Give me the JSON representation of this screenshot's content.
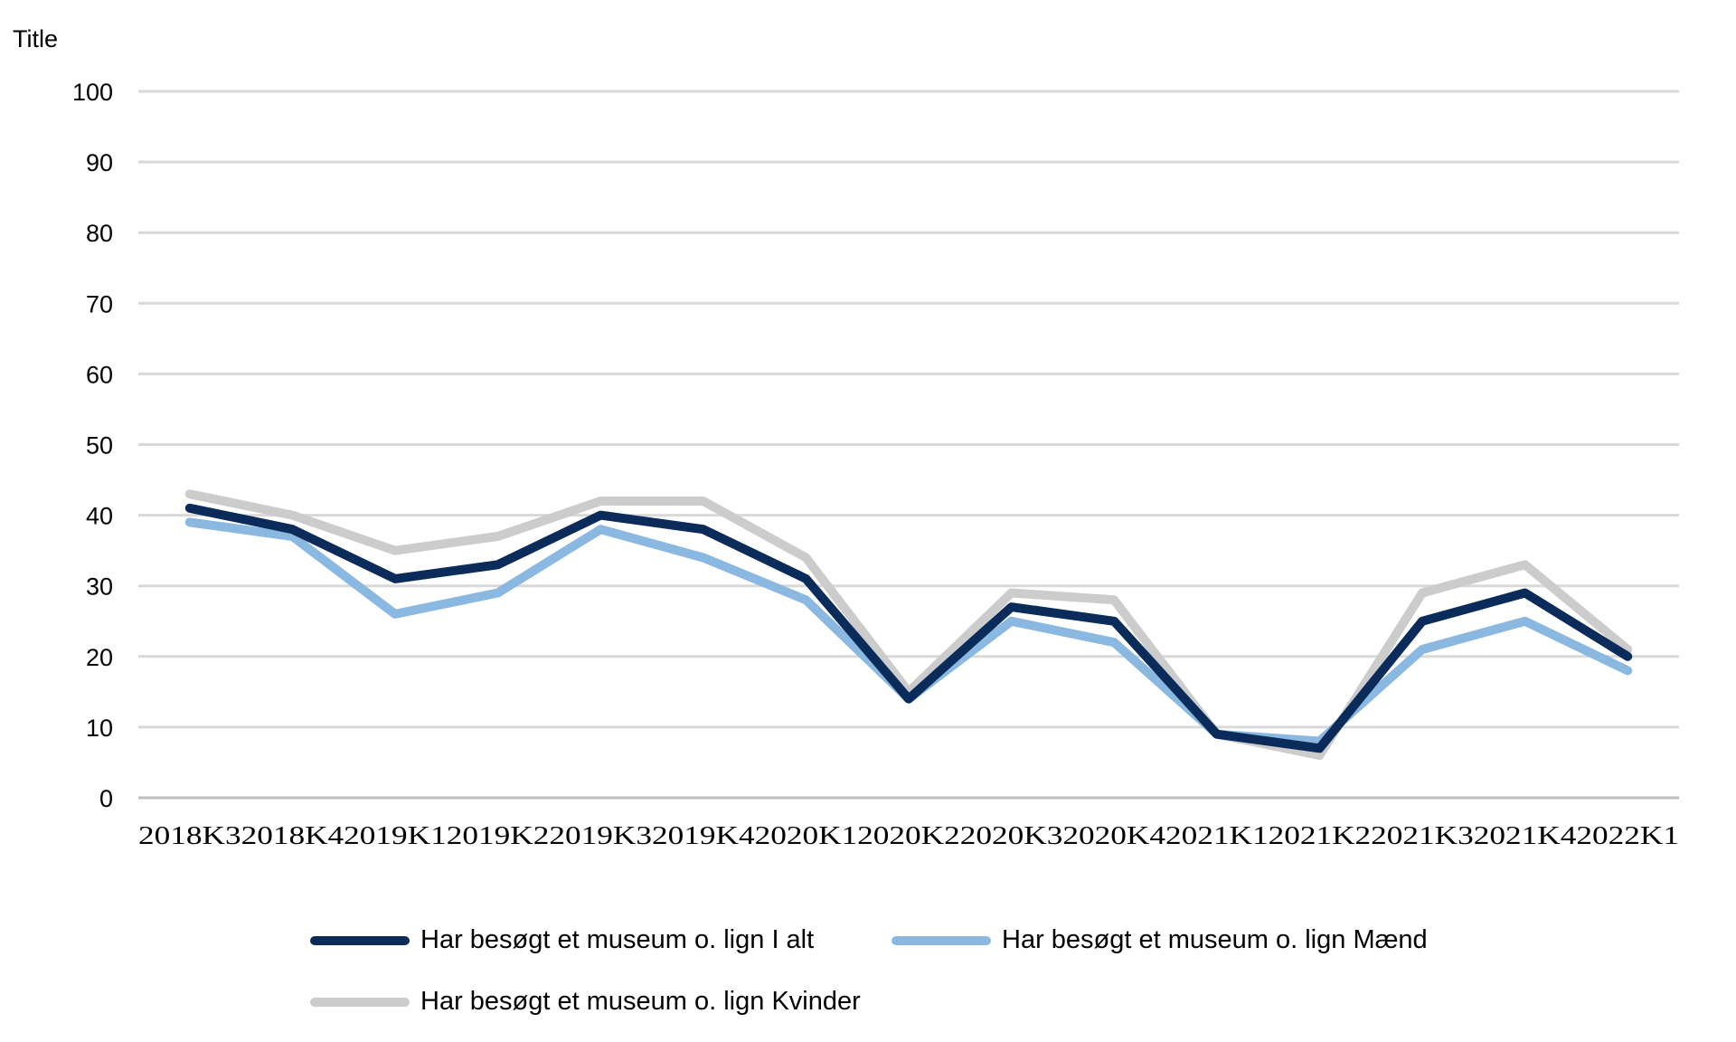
{
  "chart_data": {
    "type": "line",
    "title": "Title",
    "xlabel": "",
    "ylabel": "",
    "ylim": [
      0,
      100
    ],
    "yticks": [
      0,
      10,
      20,
      30,
      40,
      50,
      60,
      70,
      80,
      90,
      100
    ],
    "grid": true,
    "legend_position": "bottom",
    "categories": [
      "2018K3",
      "2018K4",
      "2019K1",
      "2019K2",
      "2019K3",
      "2019K4",
      "2020K1",
      "2020K2",
      "2020K3",
      "2020K4",
      "2021K1",
      "2021K2",
      "2021K3",
      "2021K4",
      "2022K1"
    ],
    "series": [
      {
        "name": "Har besøgt et museum o. lign I alt",
        "color": "#0b2c5a",
        "values": [
          41,
          38,
          31,
          33,
          40,
          38,
          31,
          14,
          27,
          25,
          9,
          7,
          25,
          29,
          20
        ]
      },
      {
        "name": "Har besøgt et museum o. lign Mænd",
        "color": "#8ab8e0",
        "values": [
          39,
          37,
          26,
          29,
          38,
          34,
          28,
          14,
          25,
          22,
          9,
          8,
          21,
          25,
          18
        ]
      },
      {
        "name": "Har besøgt et museum o. lign Kvinder",
        "color": "#cccccc",
        "values": [
          43,
          40,
          35,
          37,
          42,
          42,
          34,
          15,
          29,
          28,
          9,
          6,
          29,
          33,
          21
        ]
      }
    ]
  }
}
